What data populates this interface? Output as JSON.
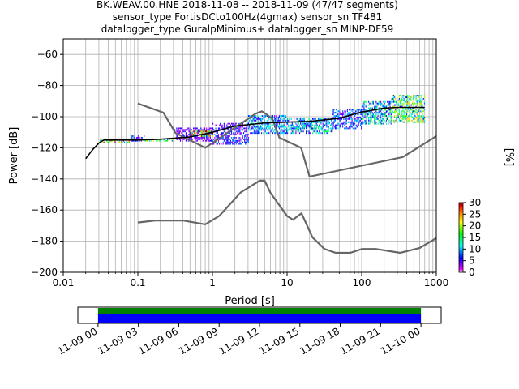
{
  "title": {
    "line1": "BK.WEAV.00.HNE   2018-11-08 -- 2018-11-09  (47/47 segments)",
    "line2": "sensor_type FortisDCto100Hz(4gmax) sensor_sn TF481",
    "line3": "datalogger_type GuralpMinimus+ datalogger_sn MINP-DF59"
  },
  "colorbar": {
    "label": "[%]",
    "ticks": [
      0,
      5,
      10,
      15,
      20,
      25,
      30
    ],
    "range": [
      0,
      30
    ],
    "colors": [
      "#ffffff",
      "#ff00ff",
      "#0000ff",
      "#00ffff",
      "#00ff00",
      "#ffff00",
      "#ff8000",
      "#ff0000",
      "#8b0000"
    ]
  },
  "chart_data": [
    {
      "type": "heatmap",
      "title": "BK.WEAV.00.HNE   2018-11-08 -- 2018-11-09  (47/47 segments)",
      "xlabel": "Period [s]",
      "ylabel": "Power [dB]",
      "xscale": "log",
      "xlim": [
        0.01,
        1000
      ],
      "ylim": [
        -200,
        -50
      ],
      "xticks": [
        0.01,
        0.1,
        1,
        10,
        100,
        1000
      ],
      "xtick_labels": [
        "0.01",
        "0.1",
        "1",
        "10",
        "100",
        "1000"
      ],
      "yticks": [
        -200,
        -180,
        -160,
        -140,
        -120,
        -100,
        -80,
        -60
      ],
      "grid": true,
      "noise_model_high": {
        "period": [
          0.1,
          0.22,
          0.32,
          0.8,
          3.8,
          4.6,
          6.3,
          7.9,
          15.4,
          20,
          354.8,
          1000
        ],
        "power": [
          -91.5,
          -97.4,
          -110.5,
          -120,
          -98,
          -96.5,
          -101,
          -113.5,
          -120,
          -138.5,
          -126,
          -112.5
        ]
      },
      "noise_model_low": {
        "period": [
          0.1,
          0.17,
          0.4,
          0.8,
          1.24,
          2.4,
          4.3,
          5,
          6,
          10,
          12,
          15.6,
          21.9,
          31.6,
          45,
          70,
          101,
          154,
          328,
          600,
          1000
        ],
        "power": [
          -168,
          -166.7,
          -166.7,
          -169.2,
          -163.7,
          -148.6,
          -141.1,
          -141.1,
          -149,
          -163.8,
          -166.2,
          -162.1,
          -177.5,
          -185,
          -187.5,
          -187.5,
          -185,
          -185,
          -187.5,
          -184.4,
          -178
        ]
      },
      "mode_curve": {
        "period": [
          0.02,
          0.025,
          0.03,
          0.035,
          0.05,
          0.1,
          0.2,
          0.5,
          1,
          2,
          5,
          10,
          20,
          50,
          100,
          150,
          200,
          300,
          500,
          700
        ],
        "power": [
          -127,
          -121,
          -117,
          -115,
          -115,
          -115,
          -114.5,
          -113,
          -110,
          -106,
          -104,
          -103.5,
          -103,
          -101,
          -97,
          -95.5,
          -94.5,
          -94,
          -94,
          -94
        ]
      },
      "pdf_bands": [
        {
          "period_range": [
            0.03,
            0.08
          ],
          "power_range": [
            -117,
            -114
          ],
          "percent": 30
        },
        {
          "period_range": [
            0.08,
            0.12
          ],
          "power_range": [
            -116,
            -112
          ],
          "percent": 8
        },
        {
          "period_range": [
            0.12,
            0.3
          ],
          "power_range": [
            -116,
            -114
          ],
          "percent": 20
        },
        {
          "period_range": [
            0.3,
            1
          ],
          "power_range": [
            -116,
            -107
          ],
          "percent": 6
        },
        {
          "period_range": [
            0.5,
            1
          ],
          "power_range": [
            -113,
            -109
          ],
          "percent": 28
        },
        {
          "period_range": [
            1,
            3
          ],
          "power_range": [
            -118,
            -104
          ],
          "percent": 8
        },
        {
          "period_range": [
            3,
            10
          ],
          "power_range": [
            -111,
            -99
          ],
          "percent": 12
        },
        {
          "period_range": [
            10,
            40
          ],
          "power_range": [
            -111,
            -101
          ],
          "percent": 14
        },
        {
          "period_range": [
            40,
            100
          ],
          "power_range": [
            -108,
            -95
          ],
          "percent": 10
        },
        {
          "period_range": [
            100,
            250
          ],
          "power_range": [
            -105,
            -90
          ],
          "percent": 15
        },
        {
          "period_range": [
            250,
            700
          ],
          "power_range": [
            -104,
            -86
          ],
          "percent": 22
        }
      ]
    },
    {
      "type": "bar",
      "title": "",
      "description_role": "data coverage timeline",
      "xtick_labels": [
        "11-09 00",
        "11-09 03",
        "11-09 06",
        "11-09 09",
        "11-09 12",
        "11-09 15",
        "11-09 18",
        "11-09 21",
        "11-10 00"
      ],
      "xlim": [
        "11-08 22:30",
        "11-10 01:30"
      ],
      "coverage": [
        {
          "start": "11-09 00:00",
          "end": "11-10 00:00",
          "color": "#008000",
          "row": "top"
        },
        {
          "start": "11-09 00:00",
          "end": "11-10 00:00",
          "color": "#0000ff",
          "row": "bottom"
        }
      ]
    }
  ]
}
